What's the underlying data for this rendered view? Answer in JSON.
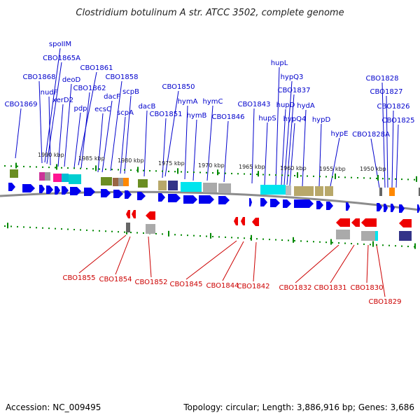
{
  "title": "Clostridium botulinum A str. ATCC 3502, complete genome",
  "accession": "Accession: NC_009495",
  "topology": "Topology: circular; Length: 3,886,916 bp; Genes: 3,686",
  "colors": {
    "forward_label": "#0000cc",
    "reverse_label": "#cc0000",
    "forward_gene": "#0000ee",
    "reverse_gene": "#ee0000",
    "tick": "#008800",
    "backbone": "#777777"
  },
  "scale_labels": [
    "1990 kbp",
    "1985 kbp",
    "1980 kbp",
    "1975 kbp",
    "1970 kbp",
    "1965 kbp",
    "1960 kbp",
    "1955 kbp",
    "1950 kbp"
  ],
  "forward_genes": [
    "spoIIM",
    "CBO1865A",
    "CBO1868",
    "CBO1861",
    "nudF",
    "deoD",
    "CBO1862",
    "CBO1858",
    "xerD2",
    "dacF",
    "scpB",
    "CBO1869",
    "pdp",
    "ecsC",
    "scpA",
    "CBO1850",
    "dacB",
    "CBO1851",
    "hymA",
    "hymC",
    "hymB",
    "CBO1846",
    "CBO1843",
    "hupL",
    "hypQ3",
    "CBO1837",
    "hupD",
    "hydA",
    "hupS",
    "hypQ4",
    "hypD",
    "hypE",
    "CBO1828",
    "CBO1827",
    "CBO1826",
    "CBO1825",
    "CBO1828A"
  ],
  "reverse_genes": [
    "CBO1855",
    "CBO1854",
    "CBO1852",
    "CBO1845",
    "CBO1844",
    "CBO1842",
    "CBO1832",
    "CBO1831",
    "CBO1830",
    "CBO1829"
  ]
}
